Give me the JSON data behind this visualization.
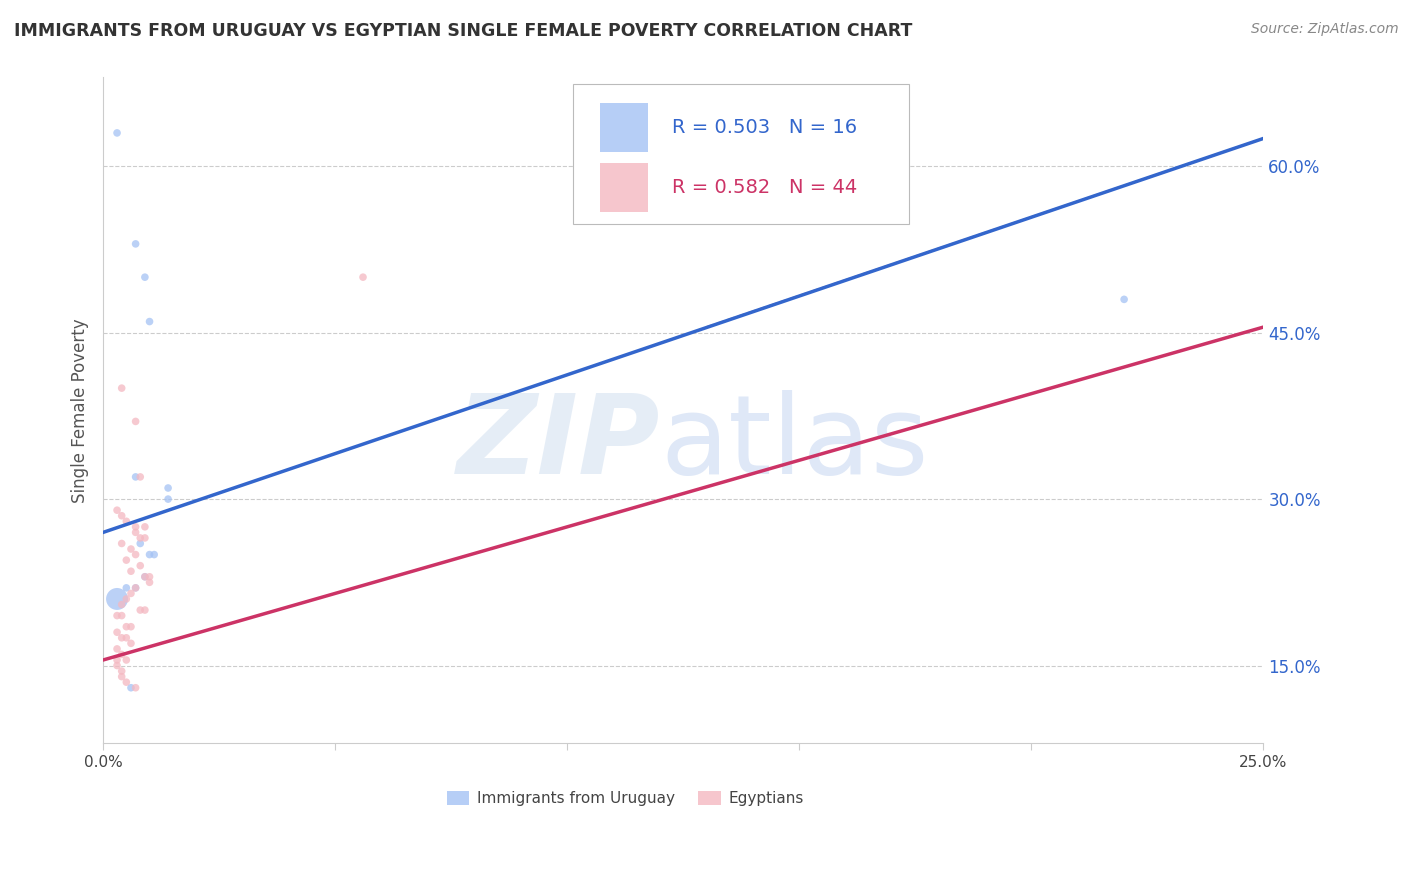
{
  "title": "IMMIGRANTS FROM URUGUAY VS EGYPTIAN SINGLE FEMALE POVERTY CORRELATION CHART",
  "source": "Source: ZipAtlas.com",
  "ylabel": "Single Female Poverty",
  "right_yticks": [
    "15.0%",
    "30.0%",
    "45.0%",
    "60.0%"
  ],
  "right_ytick_vals": [
    0.15,
    0.3,
    0.45,
    0.6
  ],
  "xlim": [
    0.0,
    0.25
  ],
  "ylim": [
    0.08,
    0.68
  ],
  "legend_blue_r": "0.503",
  "legend_blue_n": "16",
  "legend_pink_r": "0.582",
  "legend_pink_n": "44",
  "blue_color": "#a4c2f4",
  "pink_color": "#f4b8c1",
  "blue_line_color": "#3366cc",
  "pink_line_color": "#cc3366",
  "dashed_line_color": "#c8a0a8",
  "blue_scatter": [
    [
      0.003,
      0.63
    ],
    [
      0.007,
      0.53
    ],
    [
      0.009,
      0.5
    ],
    [
      0.01,
      0.46
    ],
    [
      0.007,
      0.32
    ],
    [
      0.014,
      0.31
    ],
    [
      0.014,
      0.3
    ],
    [
      0.008,
      0.26
    ],
    [
      0.01,
      0.25
    ],
    [
      0.011,
      0.25
    ],
    [
      0.009,
      0.23
    ],
    [
      0.005,
      0.22
    ],
    [
      0.007,
      0.22
    ],
    [
      0.003,
      0.21
    ],
    [
      0.006,
      0.13
    ],
    [
      0.22,
      0.48
    ]
  ],
  "blue_sizes": [
    30,
    30,
    30,
    30,
    30,
    30,
    30,
    30,
    30,
    30,
    30,
    30,
    30,
    250,
    30,
    30
  ],
  "pink_scatter": [
    [
      0.056,
      0.5
    ],
    [
      0.004,
      0.4
    ],
    [
      0.007,
      0.37
    ],
    [
      0.008,
      0.32
    ],
    [
      0.003,
      0.29
    ],
    [
      0.004,
      0.285
    ],
    [
      0.005,
      0.28
    ],
    [
      0.007,
      0.275
    ],
    [
      0.009,
      0.275
    ],
    [
      0.007,
      0.27
    ],
    [
      0.008,
      0.265
    ],
    [
      0.009,
      0.265
    ],
    [
      0.004,
      0.26
    ],
    [
      0.006,
      0.255
    ],
    [
      0.007,
      0.25
    ],
    [
      0.005,
      0.245
    ],
    [
      0.008,
      0.24
    ],
    [
      0.006,
      0.235
    ],
    [
      0.009,
      0.23
    ],
    [
      0.01,
      0.23
    ],
    [
      0.01,
      0.225
    ],
    [
      0.007,
      0.22
    ],
    [
      0.006,
      0.215
    ],
    [
      0.005,
      0.21
    ],
    [
      0.004,
      0.205
    ],
    [
      0.008,
      0.2
    ],
    [
      0.009,
      0.2
    ],
    [
      0.003,
      0.195
    ],
    [
      0.004,
      0.195
    ],
    [
      0.005,
      0.185
    ],
    [
      0.006,
      0.185
    ],
    [
      0.003,
      0.18
    ],
    [
      0.004,
      0.175
    ],
    [
      0.005,
      0.175
    ],
    [
      0.006,
      0.17
    ],
    [
      0.003,
      0.165
    ],
    [
      0.004,
      0.16
    ],
    [
      0.005,
      0.155
    ],
    [
      0.003,
      0.155
    ],
    [
      0.003,
      0.15
    ],
    [
      0.004,
      0.145
    ],
    [
      0.004,
      0.14
    ],
    [
      0.005,
      0.135
    ],
    [
      0.007,
      0.13
    ]
  ],
  "pink_sizes": [
    30,
    30,
    30,
    30,
    30,
    30,
    30,
    30,
    30,
    30,
    30,
    30,
    30,
    30,
    30,
    30,
    30,
    30,
    30,
    30,
    30,
    30,
    30,
    30,
    30,
    30,
    30,
    30,
    30,
    30,
    30,
    30,
    30,
    30,
    30,
    30,
    30,
    30,
    30,
    30,
    30,
    30,
    30,
    30
  ],
  "blue_line_x": [
    0.0,
    0.25
  ],
  "blue_line_y": [
    0.27,
    0.625
  ],
  "pink_line_x": [
    0.0,
    0.25
  ],
  "pink_line_y": [
    0.155,
    0.455
  ],
  "dashed_line_x": [
    0.13,
    0.25
  ],
  "dashed_line_y": [
    0.455,
    0.625
  ],
  "grid_yticks": [
    0.15,
    0.3,
    0.45,
    0.6
  ],
  "xtick_vals": [
    0.0,
    0.05,
    0.1,
    0.15,
    0.2,
    0.25
  ],
  "xtick_labels": [
    "0.0%",
    "",
    "",
    "",
    "",
    "25.0%"
  ]
}
